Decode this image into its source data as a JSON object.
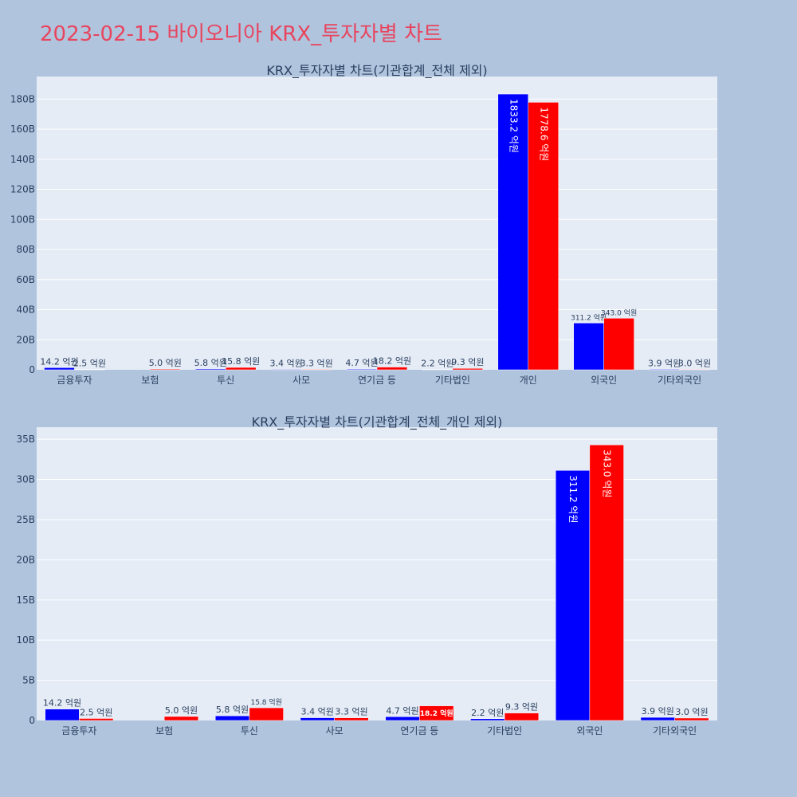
{
  "page_title": "2023-02-15 바이오니아 KRX_투자자별 차트",
  "colors": {
    "background": "#b0c4de",
    "plot_bg": "#e5ecf6",
    "title": "#e8455e",
    "series1": "#0000ff",
    "series2": "#ff0000",
    "text": "#2a3f5f"
  },
  "chart_data": [
    {
      "type": "bar",
      "title": "KRX_투자자별 차트(기관합계_전체 제외)",
      "categories": [
        "금융투자",
        "보험",
        "투신",
        "사모",
        "연기금 등",
        "기타법인",
        "개인",
        "외국인",
        "기타외국인"
      ],
      "series": [
        {
          "color": "#0000ff",
          "values": [
            1.42,
            0,
            0.58,
            0.34,
            0.47,
            0.22,
            183.32,
            31.12,
            0.39
          ],
          "labels": [
            "14.2 억원",
            "",
            "5.8 억원",
            "3.4 억원",
            "4.7 억원",
            "2.2 억원",
            "1833.2 억원",
            "311.2 억원",
            "3.9 억원"
          ]
        },
        {
          "color": "#ff0000",
          "values": [
            0.25,
            0.5,
            1.58,
            0.33,
            1.82,
            0.93,
            177.86,
            34.3,
            0.3
          ],
          "labels": [
            "2.5 억원",
            "5.0 억원",
            "15.8 억원",
            "3.3 억원",
            "18.2 억원",
            "9.3 억원",
            "1778.6 억원",
            "343.0 억원",
            "3.0 억원"
          ]
        }
      ],
      "unit": "B",
      "ylim": [
        0,
        195
      ],
      "yticks": [
        0,
        20,
        40,
        60,
        80,
        100,
        120,
        140,
        160,
        180
      ],
      "ytick_labels": [
        "0",
        "20B",
        "40B",
        "60B",
        "80B",
        "100B",
        "120B",
        "140B",
        "160B",
        "180B"
      ],
      "grid": true
    },
    {
      "type": "bar",
      "title": "KRX_투자자별 차트(기관합계_전체_개인 제외)",
      "categories": [
        "금융투자",
        "보험",
        "투신",
        "사모",
        "연기금 등",
        "기타법인",
        "외국인",
        "기타외국인"
      ],
      "series": [
        {
          "color": "#0000ff",
          "values": [
            1.42,
            0,
            0.58,
            0.34,
            0.47,
            0.22,
            31.12,
            0.39
          ],
          "labels": [
            "14.2 억원",
            "",
            "5.8 억원",
            "3.4 억원",
            "4.7 억원",
            "2.2 억원",
            "311.2 억원",
            "3.9 억원"
          ]
        },
        {
          "color": "#ff0000",
          "values": [
            0.25,
            0.5,
            1.58,
            0.33,
            1.82,
            0.93,
            34.3,
            0.3
          ],
          "labels": [
            "2.5 억원",
            "5.0 억원",
            "15.8 억원",
            "3.3 억원",
            "18.2 억원",
            "9.3 억원",
            "343.0 억원",
            "3.0 억원"
          ]
        }
      ],
      "unit": "B",
      "ylim": [
        0,
        36.5
      ],
      "yticks": [
        0,
        5,
        10,
        15,
        20,
        25,
        30,
        35
      ],
      "ytick_labels": [
        "0",
        "5B",
        "10B",
        "15B",
        "20B",
        "25B",
        "30B",
        "35B"
      ],
      "grid": true
    }
  ]
}
